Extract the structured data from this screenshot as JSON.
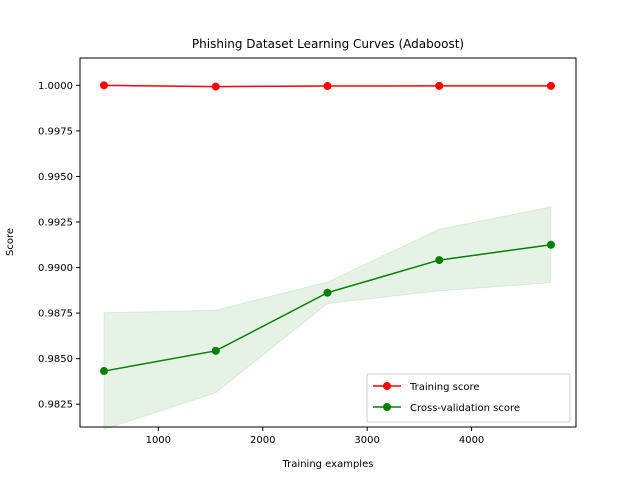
{
  "chart_data": {
    "type": "line",
    "title": "Phishing Dataset Learning Curves (Adaboost)",
    "xlabel": "Training examples",
    "ylabel": "Score",
    "xlim": [
      250,
      5000
    ],
    "ylim": [
      0.98125,
      1.0015
    ],
    "xticks": [
      1000,
      2000,
      3000,
      4000
    ],
    "xtick_labels": [
      "1000",
      "2000",
      "3000",
      "4000"
    ],
    "yticks": [
      0.9825,
      0.985,
      0.9875,
      0.99,
      0.9925,
      0.995,
      0.9975,
      1.0
    ],
    "ytick_labels": [
      "0.9825",
      "0.9850",
      "0.9875",
      "0.9900",
      "0.9925",
      "0.9950",
      "0.9975",
      "1.0000"
    ],
    "grid": false,
    "legend_position": "lower-right",
    "x": [
      480,
      1550,
      2620,
      3690,
      4760
    ],
    "series": [
      {
        "name": "Training score",
        "color": "#ff0000",
        "marker": "circle",
        "values": [
          1.0,
          0.99993,
          0.99996,
          0.99997,
          0.99997
        ],
        "band_lower": [
          1.0,
          0.99993,
          0.99996,
          0.99997,
          0.99997
        ],
        "band_upper": [
          1.0,
          0.99993,
          0.99996,
          0.99997,
          0.99997
        ]
      },
      {
        "name": "Cross-validation score",
        "color": "#008000",
        "marker": "circle",
        "band_color": "#008000",
        "values": [
          0.98432,
          0.98543,
          0.98862,
          0.99041,
          0.99125
        ],
        "band_lower": [
          0.98112,
          0.98313,
          0.98803,
          0.98872,
          0.98917
        ],
        "band_upper": [
          0.98752,
          0.98766,
          0.98921,
          0.9921,
          0.99333
        ]
      }
    ]
  }
}
